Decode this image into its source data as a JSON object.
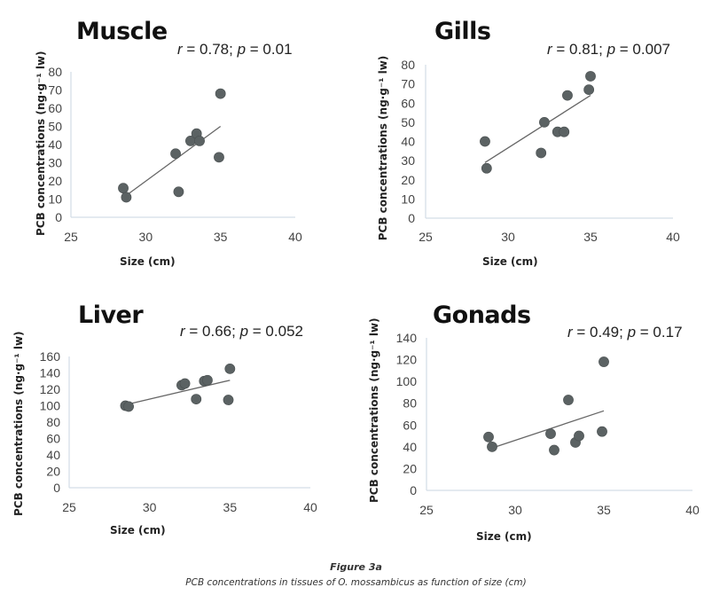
{
  "figure": {
    "caption_title": "Figure 3a",
    "caption_text": "PCB concentrations in tissues of O. mossambicus as function of size (cm)"
  },
  "chart_data": [
    {
      "type": "scatter",
      "title": "Muscle",
      "stat_r_label": "r",
      "stat_r_value": " = 0.78; ",
      "stat_p_label": "p",
      "stat_p_value": " = 0.01",
      "xlabel": "Size (cm)",
      "ylabel": "PCB concentrations (ng·g⁻¹ lw)",
      "xlim": [
        25,
        40
      ],
      "ylim": [
        0,
        80
      ],
      "xticks": [
        25,
        30,
        35,
        40
      ],
      "yticks": [
        0,
        10,
        20,
        30,
        40,
        50,
        60,
        70,
        80
      ],
      "points": [
        [
          28.5,
          16
        ],
        [
          28.7,
          11
        ],
        [
          32.0,
          35
        ],
        [
          32.2,
          14
        ],
        [
          33.0,
          42
        ],
        [
          33.4,
          46
        ],
        [
          33.6,
          42
        ],
        [
          34.9,
          33
        ],
        [
          35.0,
          68
        ]
      ],
      "trendline": {
        "x": [
          28.7,
          35.0
        ],
        "y": [
          12,
          50
        ]
      },
      "grid": false
    },
    {
      "type": "scatter",
      "title": "Gills",
      "stat_r_label": "r",
      "stat_r_value": " = 0.81; ",
      "stat_p_label": "p",
      "stat_p_value": " = 0.007",
      "xlabel": "Size (cm)",
      "ylabel": "PCB concentrations  (ng·g⁻¹ lw)",
      "xlim": [
        25,
        40
      ],
      "ylim": [
        0,
        80
      ],
      "xticks": [
        25,
        30,
        35,
        40
      ],
      "yticks": [
        0,
        10,
        20,
        30,
        40,
        50,
        60,
        70,
        80
      ],
      "points": [
        [
          28.6,
          40
        ],
        [
          28.7,
          26
        ],
        [
          32.0,
          34
        ],
        [
          32.2,
          50
        ],
        [
          33.0,
          45
        ],
        [
          33.4,
          45
        ],
        [
          33.6,
          64
        ],
        [
          34.9,
          67
        ],
        [
          35.0,
          74
        ]
      ],
      "trendline": {
        "x": [
          28.6,
          35.0
        ],
        "y": [
          29,
          64
        ]
      },
      "grid": false
    },
    {
      "type": "scatter",
      "title": "Liver",
      "stat_r_label": "r",
      "stat_r_value": " = 0.66; ",
      "stat_p_label": "p",
      "stat_p_value": " = 0.052",
      "xlabel": "Size (cm)",
      "ylabel": "PCB concentrations (ng·g⁻¹ lw)",
      "xlim": [
        25,
        40
      ],
      "ylim": [
        0,
        160
      ],
      "xticks": [
        25,
        30,
        35,
        40
      ],
      "yticks": [
        0,
        20,
        40,
        60,
        80,
        100,
        120,
        140,
        160
      ],
      "points": [
        [
          28.5,
          100
        ],
        [
          28.7,
          99
        ],
        [
          32.0,
          125
        ],
        [
          32.2,
          127
        ],
        [
          32.9,
          108
        ],
        [
          33.4,
          130
        ],
        [
          33.6,
          131
        ],
        [
          34.9,
          107
        ],
        [
          35.0,
          145
        ]
      ],
      "trendline": {
        "x": [
          28.7,
          35.0
        ],
        "y": [
          102,
          131
        ]
      },
      "grid": false
    },
    {
      "type": "scatter",
      "title": "Gonads",
      "stat_r_label": "r",
      "stat_r_value": " = 0.49; ",
      "stat_p_label": "p",
      "stat_p_value": " = 0.17",
      "xlabel": "Size (cm)",
      "ylabel": "PCB concentrations (ng·g⁻¹ lw)",
      "xlim": [
        25,
        40
      ],
      "ylim": [
        0,
        140
      ],
      "xticks": [
        25,
        30,
        35,
        40
      ],
      "yticks": [
        0,
        20,
        40,
        60,
        80,
        100,
        120,
        140
      ],
      "points": [
        [
          28.5,
          49
        ],
        [
          28.7,
          40
        ],
        [
          32.0,
          52
        ],
        [
          32.2,
          37
        ],
        [
          33.0,
          83
        ],
        [
          33.4,
          44
        ],
        [
          33.6,
          50
        ],
        [
          34.9,
          54
        ],
        [
          35.0,
          118
        ]
      ],
      "trendline": {
        "x": [
          28.9,
          35.0
        ],
        "y": [
          40,
          73
        ]
      },
      "grid": false
    }
  ]
}
